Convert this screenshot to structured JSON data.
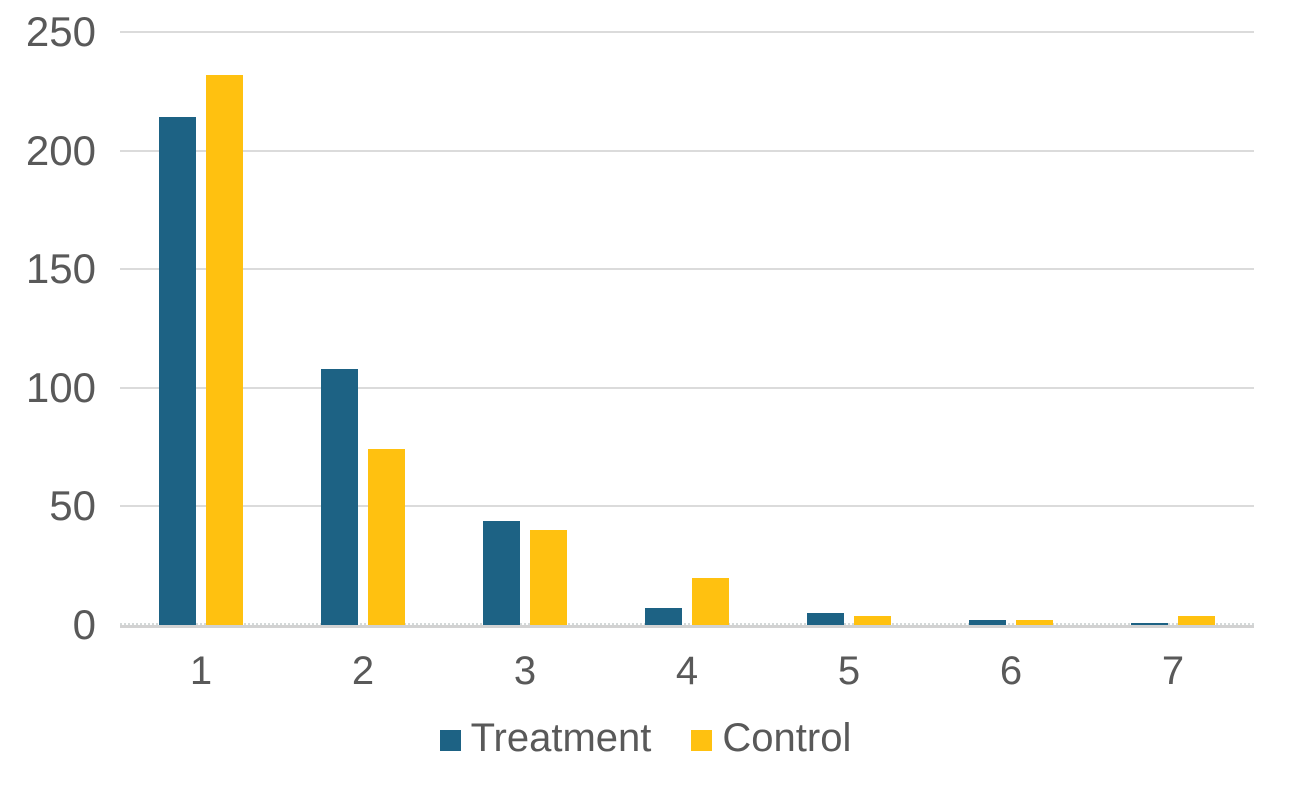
{
  "chart_data": {
    "type": "bar",
    "title": "",
    "xlabel": "",
    "ylabel": "",
    "categories": [
      "1",
      "2",
      "3",
      "4",
      "5",
      "6",
      "7"
    ],
    "series": [
      {
        "name": "Treatment",
        "color": "#1D6284",
        "values": [
          214,
          108,
          44,
          7,
          5,
          2,
          1
        ]
      },
      {
        "name": "Control",
        "color": "#FFC110",
        "values": [
          232,
          74,
          40,
          20,
          4,
          2,
          4
        ]
      }
    ],
    "ylim": [
      0,
      250
    ],
    "yticks": [
      0,
      50,
      100,
      150,
      200,
      250
    ],
    "grid": true,
    "legend_position": "bottom"
  },
  "style": {
    "background": "#FFFFFF",
    "text_color": "#595959",
    "gridline_color": "#DBDBDB",
    "axis_line_color": "#D2D2D2"
  }
}
